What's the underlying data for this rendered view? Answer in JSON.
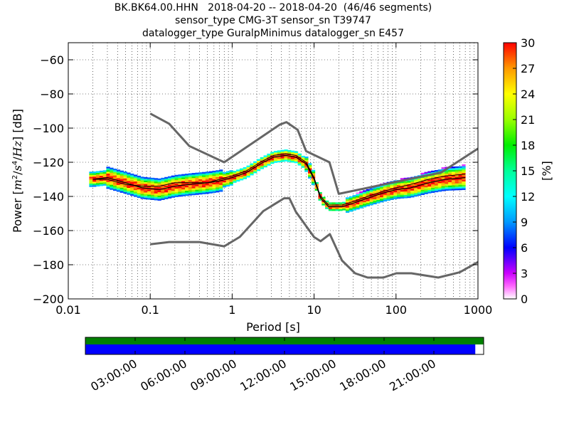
{
  "title_lines": [
    "BK.BK64.00.HHN   2018-04-20 -- 2018-04-20  (46/46 segments)",
    "sensor_type CMG-3T sensor_sn T39747",
    "datalogger_type GuralpMinimus datalogger_sn E457"
  ],
  "chart_data": {
    "type": "heatmap",
    "title": "BK.BK64.00.HHN 2018-04-20 -- 2018-04-20 (46/46 segments)",
    "xlabel": "Period [s]",
    "ylabel": "Power [m²/s⁴/Hz] [dB]",
    "ylabel_parts": {
      "prefix": "Power [",
      "m": "m",
      "exp2": "2",
      "slash1": "/",
      "s": "s",
      "exp4": "4",
      "slash2": "/",
      "hz": "Hz",
      "suffix": "] [dB]"
    },
    "x_scale": "log",
    "xlim": [
      0.01,
      1000
    ],
    "ylim": [
      -200,
      -50
    ],
    "x_ticks": [
      0.01,
      0.1,
      1,
      10,
      100,
      1000
    ],
    "x_tick_labels": [
      "0.01",
      "0.1",
      "1",
      "10",
      "100",
      "1000"
    ],
    "y_ticks": [
      -200,
      -180,
      -160,
      -140,
      -120,
      -100,
      -80,
      -60
    ],
    "y_tick_labels": [
      "−200",
      "−180",
      "−160",
      "−140",
      "−120",
      "−100",
      "−80",
      "−60"
    ],
    "grid": true,
    "colorbar": {
      "label": "[%]",
      "min": 0,
      "max": 30,
      "ticks": [
        0,
        3,
        6,
        9,
        12,
        15,
        18,
        21,
        24,
        27,
        30
      ],
      "tick_labels": [
        "0",
        "3",
        "6",
        "9",
        "12",
        "15",
        "18",
        "21",
        "24",
        "27",
        "30"
      ]
    },
    "noise_model_high": {
      "x": [
        0.1,
        0.17,
        0.3,
        0.8,
        3.8,
        4.6,
        6.3,
        8,
        15.4,
        20,
        354.8,
        1000
      ],
      "y": [
        -91.5,
        -97.4,
        -110.5,
        -120,
        -98,
        -96.5,
        -101,
        -113.5,
        -120,
        -138.5,
        -126,
        -112
      ]
    },
    "noise_model_low": {
      "x": [
        0.1,
        0.17,
        0.4,
        0.8,
        1.24,
        2.4,
        4.3,
        5,
        6,
        10,
        12,
        15.6,
        21.9,
        31.6,
        45,
        70,
        101,
        154,
        328,
        600,
        1000
      ],
      "y": [
        -168,
        -166.7,
        -166.7,
        -169.2,
        -163.7,
        -148.6,
        -141.1,
        -141.1,
        -149,
        -163.8,
        -166.2,
        -162.1,
        -177.5,
        -185,
        -187.5,
        -187.5,
        -185,
        -185,
        -187.5,
        -184.4,
        -178.4
      ]
    },
    "mode_line": {
      "x": [
        0.02,
        0.03,
        0.05,
        0.08,
        0.13,
        0.2,
        0.3,
        0.5,
        0.7,
        1.0,
        1.5,
        2.2,
        3.2,
        4.5,
        6.0,
        8.0,
        10,
        12,
        15,
        22,
        30,
        45,
        70,
        100,
        150,
        250,
        400,
        700
      ],
      "y": [
        -130,
        -129,
        -132,
        -135,
        -136,
        -134,
        -133,
        -132,
        -131,
        -129,
        -126,
        -121,
        -117,
        -116,
        -117,
        -121,
        -130,
        -141,
        -146,
        -146,
        -144,
        -141,
        -138,
        -136,
        -135,
        -132,
        -130,
        -129
      ]
    },
    "mean_line": {
      "x": [
        0.02,
        0.03,
        0.05,
        0.08,
        0.13,
        0.2,
        0.3,
        0.5,
        0.7,
        1.0,
        1.5,
        2.2,
        3.2,
        4.5,
        6.0,
        8.0,
        10,
        12,
        15,
        22,
        30,
        45,
        70,
        100,
        150,
        250,
        400,
        700
      ],
      "y": [
        -130,
        -130,
        -133,
        -134,
        -134,
        -132,
        -132,
        -132,
        -130,
        -128,
        -125,
        -120,
        -116,
        -115,
        -116,
        -120,
        -129,
        -140,
        -145,
        -145,
        -143,
        -140,
        -137,
        -135,
        -133,
        -130,
        -128,
        -127
      ]
    }
  },
  "timeline": {
    "tick_labels": [
      "03:00:00",
      "06:00:00",
      "09:00:00",
      "12:00:00",
      "15:00:00",
      "18:00:00",
      "21:00:00"
    ],
    "tick_hours": [
      3,
      6,
      9,
      12,
      15,
      18,
      21
    ],
    "span_hours": 24,
    "data_coverage_fraction": 1.0,
    "psd_coverage_fraction": 0.979,
    "data_color": "#008000",
    "psd_color": "#0000ff"
  },
  "colors": {
    "noise_model": "#666666",
    "mode_line": "#000000",
    "mean_line": "#000000"
  }
}
